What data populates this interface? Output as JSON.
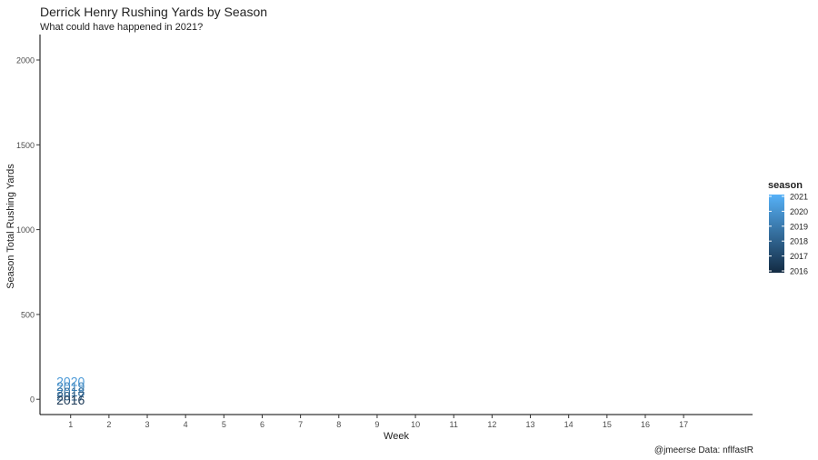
{
  "chart_data": {
    "type": "line",
    "title": "Derrick Henry Rushing Yards by Season",
    "subtitle": "What could have happened in 2021?",
    "xlabel": "Week",
    "ylabel": "Season Total Rushing Yards",
    "caption": "@jmeerse  Data: nflfastR",
    "x_ticks": [
      1,
      2,
      3,
      4,
      5,
      6,
      7,
      8,
      9,
      10,
      11,
      12,
      13,
      14,
      15,
      16,
      17
    ],
    "y_ticks": [
      0,
      500,
      1000,
      1500,
      2000
    ],
    "xlim": [
      0.2,
      18.8
    ],
    "ylim": [
      -90,
      2150
    ],
    "grid": false,
    "legend": {
      "title": "season",
      "placement": "right",
      "labels": [
        "2021",
        "2020",
        "2019",
        "2018",
        "2017",
        "2016"
      ],
      "gradient": [
        "#56B1F7",
        "#132B43"
      ]
    },
    "series": [
      {
        "label": "2020",
        "x": 1,
        "y": 105,
        "color": "#4d9bd8"
      },
      {
        "label": "2019",
        "x": 1,
        "y": 75,
        "color": "#3f86bd"
      },
      {
        "label": "2018",
        "x": 1,
        "y": 45,
        "color": "#3370a0"
      },
      {
        "label": "2017",
        "x": 1,
        "y": 20,
        "color": "#2a5c85"
      },
      {
        "label": "2016",
        "x": 1,
        "y": -5,
        "color": "#1d3a57"
      }
    ]
  }
}
